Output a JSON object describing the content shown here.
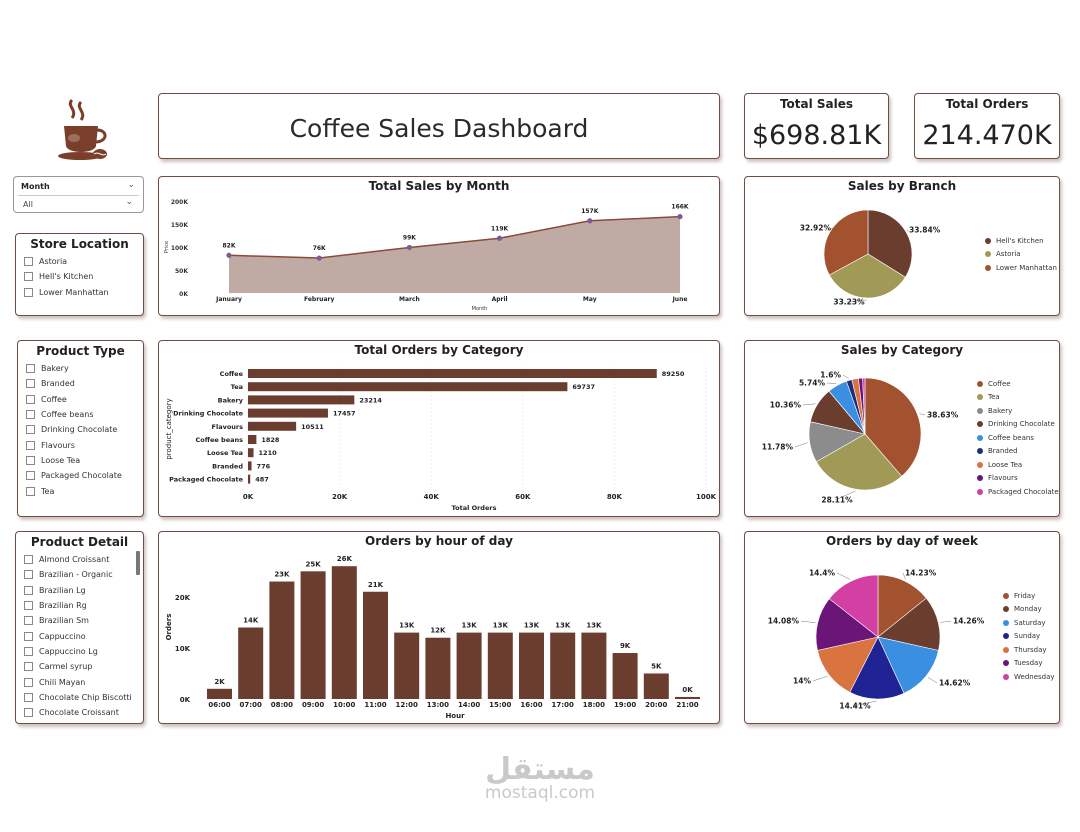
{
  "header": {
    "title": "Coffee Sales Dashboard",
    "logo": "coffee-cup-icon"
  },
  "kpis": {
    "total_sales": {
      "label": "Total Sales",
      "value": "$698.81K"
    },
    "total_orders": {
      "label": "Total Orders",
      "value": "214.470K"
    }
  },
  "filters": {
    "month": {
      "label": "Month",
      "value": "All"
    },
    "store_location": {
      "title": "Store Location",
      "items": [
        "Astoria",
        "Hell's Kitchen",
        "Lower Manhattan"
      ]
    },
    "product_type": {
      "title": "Product Type",
      "items": [
        "Bakery",
        "Branded",
        "Coffee",
        "Coffee beans",
        "Drinking Chocolate",
        "Flavours",
        "Loose Tea",
        "Packaged Chocolate",
        "Tea"
      ]
    },
    "product_detail": {
      "title": "Product Detail",
      "items": [
        "Almond Croissant",
        "Brazilian - Organic",
        "Brazilian Lg",
        "Brazilian Rg",
        "Brazilian Sm",
        "Cappuccino",
        "Cappuccino Lg",
        "Carmel syrup",
        "Chili Mayan",
        "Chocolate Chip Biscotti",
        "Chocolate Croissant"
      ]
    }
  },
  "chart_data": [
    {
      "id": "sales_by_month",
      "type": "area",
      "title": "Total Sales by Month",
      "xlabel": "Month",
      "ylabel": "Price",
      "categories": [
        "January",
        "February",
        "March",
        "April",
        "May",
        "June"
      ],
      "values": [
        82,
        76,
        99,
        119,
        157,
        166
      ],
      "data_labels": [
        "82K",
        "76K",
        "99K",
        "119K",
        "157K",
        "166K"
      ],
      "yticks": [
        "0K",
        "50K",
        "100K",
        "150K",
        "200K"
      ],
      "ylim": [
        0,
        200
      ],
      "colors": {
        "fill": "#bfaba4",
        "line": "#8b4a3a",
        "marker": "#7b5c94"
      }
    },
    {
      "id": "sales_by_branch",
      "type": "pie",
      "title": "Sales by Branch",
      "labels": [
        "Hell's Kitchen",
        "Astoria",
        "Lower Manhattan"
      ],
      "values": [
        33.84,
        33.23,
        32.92
      ],
      "data_labels": [
        "33.84%",
        "33.23%",
        "32.92%"
      ],
      "colors": [
        "#6b3d2e",
        "#a19a57",
        "#a2522f"
      ]
    },
    {
      "id": "orders_by_category",
      "type": "bar",
      "orientation": "horizontal",
      "title": "Total Orders by Category",
      "xlabel": "Total Orders",
      "ylabel": "product_category",
      "categories": [
        "Coffee",
        "Tea",
        "Bakery",
        "Drinking Chocolate",
        "Flavours",
        "Coffee beans",
        "Loose Tea",
        "Branded",
        "Packaged Chocolate"
      ],
      "values": [
        89250,
        69737,
        23214,
        17457,
        10511,
        1828,
        1210,
        776,
        487
      ],
      "xticks": [
        "0K",
        "20K",
        "40K",
        "60K",
        "80K",
        "100K"
      ],
      "xlim": [
        0,
        100000
      ],
      "color": "#6b3d2e"
    },
    {
      "id": "sales_by_category",
      "type": "pie",
      "title": "Sales by Category",
      "labels": [
        "Coffee",
        "Tea",
        "Bakery",
        "Drinking Chocolate",
        "Coffee beans",
        "Branded",
        "Loose Tea",
        "Flavours",
        "Packaged Chocolate"
      ],
      "values": [
        38.63,
        28.11,
        11.78,
        10.36,
        5.74,
        1.6,
        1.9,
        1.2,
        0.68
      ],
      "data_labels": [
        "38.63%",
        "28.11%",
        "11.78%",
        "10.36%",
        "5.74%",
        "1.6%",
        "",
        "",
        ""
      ],
      "colors": [
        "#a2522f",
        "#a19a57",
        "#8c8c8c",
        "#6b3d2e",
        "#3b8fe0",
        "#1f2e7a",
        "#d9733f",
        "#6a1678",
        "#d43fa3"
      ]
    },
    {
      "id": "orders_by_hour",
      "type": "bar",
      "title": "Orders by hour of day",
      "xlabel": "Hour",
      "ylabel": "Orders",
      "categories": [
        "06:00",
        "07:00",
        "08:00",
        "09:00",
        "10:00",
        "11:00",
        "12:00",
        "13:00",
        "14:00",
        "15:00",
        "16:00",
        "17:00",
        "18:00",
        "19:00",
        "20:00",
        "21:00"
      ],
      "values": [
        2,
        14,
        23,
        25,
        26,
        21,
        13,
        12,
        13,
        13,
        13,
        13,
        13,
        9,
        5,
        0.4
      ],
      "data_labels": [
        "2K",
        "14K",
        "23K",
        "25K",
        "26K",
        "21K",
        "13K",
        "12K",
        "13K",
        "13K",
        "13K",
        "13K",
        "13K",
        "9K",
        "5K",
        "0K"
      ],
      "yticks": [
        "0K",
        "10K",
        "20K"
      ],
      "ylim": [
        0,
        28
      ],
      "color": "#6b3d2e"
    },
    {
      "id": "orders_by_weekday",
      "type": "pie",
      "title": "Orders by day of week",
      "labels": [
        "Friday",
        "Monday",
        "Saturday",
        "Sunday",
        "Thursday",
        "Tuesday",
        "Wednesday"
      ],
      "values": [
        14.23,
        14.26,
        14.62,
        14.41,
        14.0,
        14.08,
        14.4
      ],
      "data_labels": [
        "14.23%",
        "14.26%",
        "14.62%",
        "14.41%",
        "14%",
        "14.08%",
        "14.4%"
      ],
      "colors": [
        "#a2522f",
        "#6b3d2e",
        "#3b8fe0",
        "#1f2394",
        "#d9733f",
        "#6a1678",
        "#d43fa3"
      ]
    }
  ],
  "watermark": {
    "arabic": "مستقل",
    "latin": "mostaql.com"
  }
}
